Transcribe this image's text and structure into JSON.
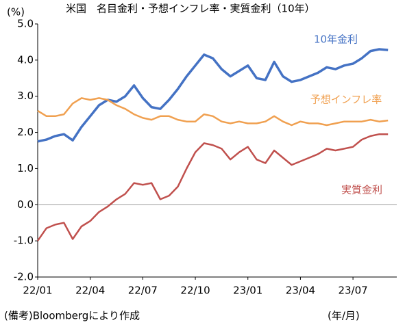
{
  "chart_data": {
    "type": "line",
    "title": "米国　名目金利・予想インフレ率・実質金利（10年）",
    "y_label": "(%)",
    "x_label": "(年/月)",
    "source": "(備考)Bloombergにより作成",
    "x": [
      0,
      0.5,
      1,
      1.5,
      2,
      2.5,
      3,
      3.5,
      4,
      4.5,
      5,
      5.5,
      6,
      6.5,
      7,
      7.5,
      8,
      8.5,
      9,
      9.5,
      10,
      10.5,
      11,
      11.5,
      12,
      12.5,
      13,
      13.5,
      14,
      14.5,
      15,
      15.5,
      16,
      16.5,
      17,
      17.5,
      18,
      18.5,
      19,
      19.5,
      20
    ],
    "xlim": [
      0,
      20.5
    ],
    "xticks": [
      {
        "value": 0,
        "label": "22/01"
      },
      {
        "value": 3,
        "label": "22/04"
      },
      {
        "value": 6,
        "label": "22/07"
      },
      {
        "value": 9,
        "label": "22/10"
      },
      {
        "value": 12,
        "label": "23/01"
      },
      {
        "value": 15,
        "label": "23/04"
      },
      {
        "value": 18,
        "label": "23/07"
      }
    ],
    "ylim": [
      -2,
      5
    ],
    "yticks": [
      {
        "value": 5,
        "label": "5.0"
      },
      {
        "value": 4,
        "label": "4.0"
      },
      {
        "value": 3,
        "label": "3.0"
      },
      {
        "value": 2,
        "label": "2.0"
      },
      {
        "value": 1,
        "label": "1.0"
      },
      {
        "value": 0,
        "label": "0.0"
      },
      {
        "value": -1,
        "label": "-1.0"
      },
      {
        "value": -2,
        "label": "-2.0"
      }
    ],
    "series": [
      {
        "name": "10年金利",
        "color": "#4472c4",
        "values": [
          1.75,
          1.8,
          1.9,
          1.95,
          1.78,
          2.15,
          2.45,
          2.75,
          2.9,
          2.85,
          3.0,
          3.3,
          2.95,
          2.7,
          2.65,
          2.9,
          3.2,
          3.55,
          3.85,
          4.15,
          4.05,
          3.75,
          3.55,
          3.7,
          3.85,
          3.5,
          3.45,
          3.95,
          3.55,
          3.4,
          3.45,
          3.55,
          3.65,
          3.8,
          3.75,
          3.85,
          3.9,
          4.05,
          4.25,
          4.3,
          4.28
        ]
      },
      {
        "name": "予想インフレ率",
        "color": "#f0a050",
        "values": [
          2.6,
          2.45,
          2.45,
          2.5,
          2.8,
          2.95,
          2.9,
          2.95,
          2.9,
          2.75,
          2.65,
          2.5,
          2.4,
          2.35,
          2.45,
          2.45,
          2.35,
          2.3,
          2.3,
          2.5,
          2.45,
          2.3,
          2.25,
          2.3,
          2.25,
          2.25,
          2.3,
          2.45,
          2.3,
          2.2,
          2.3,
          2.25,
          2.25,
          2.2,
          2.25,
          2.3,
          2.3,
          2.3,
          2.35,
          2.3,
          2.33
        ]
      },
      {
        "name": "実質金利",
        "color": "#c0504d",
        "values": [
          -1.0,
          -0.65,
          -0.55,
          -0.5,
          -0.95,
          -0.6,
          -0.45,
          -0.2,
          -0.05,
          0.15,
          0.3,
          0.6,
          0.55,
          0.6,
          0.15,
          0.25,
          0.5,
          1.0,
          1.45,
          1.7,
          1.65,
          1.55,
          1.25,
          1.45,
          1.6,
          1.25,
          1.15,
          1.5,
          1.3,
          1.1,
          1.2,
          1.3,
          1.4,
          1.55,
          1.5,
          1.55,
          1.6,
          1.8,
          1.9,
          1.95,
          1.95
        ]
      }
    ]
  }
}
